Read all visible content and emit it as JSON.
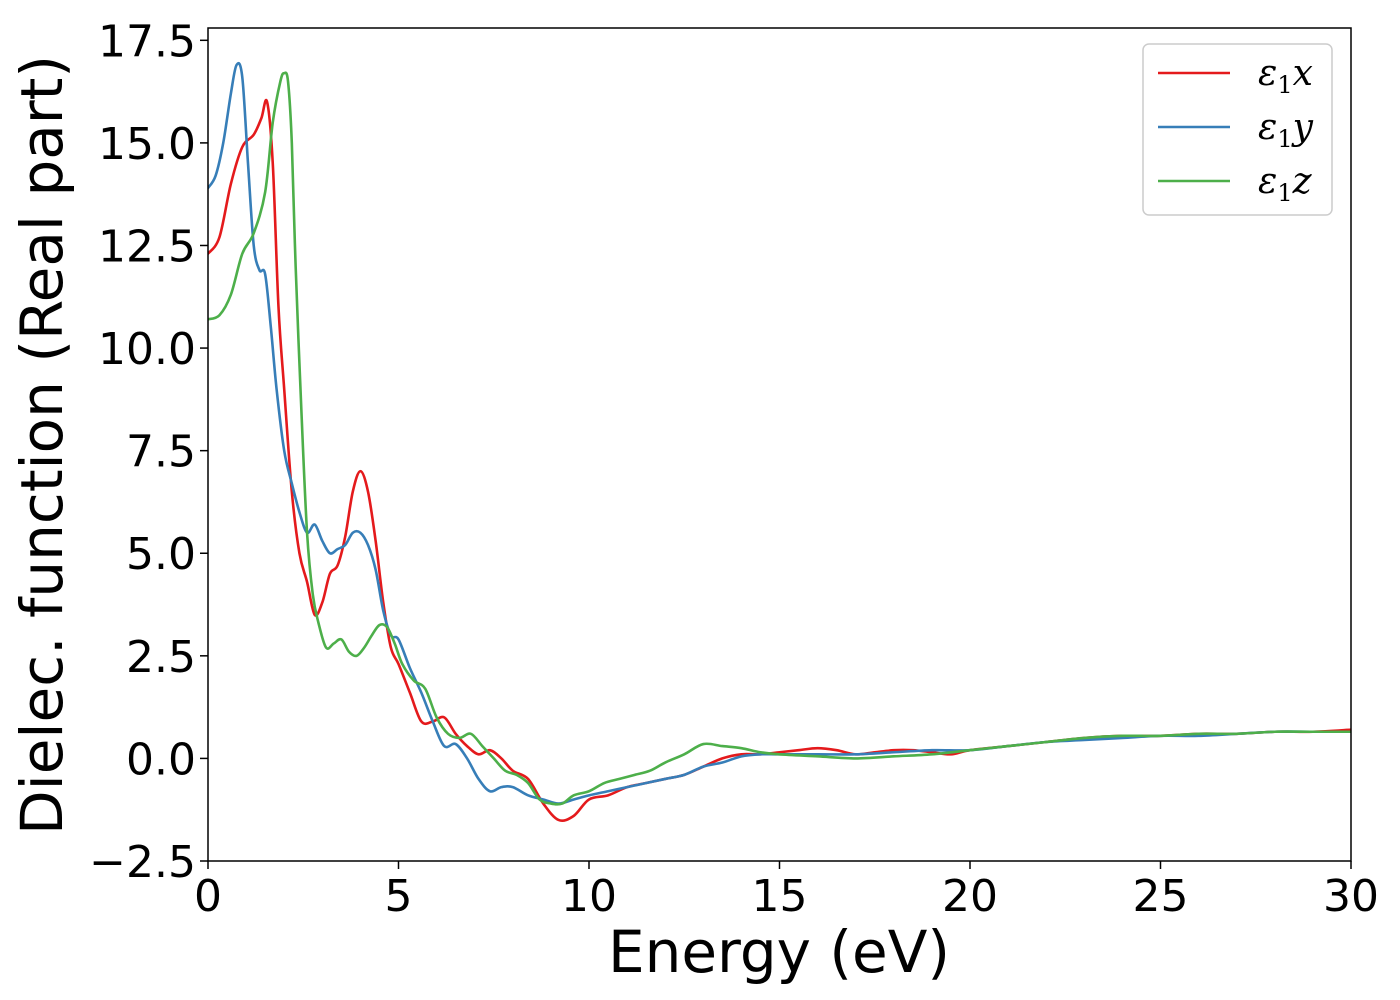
{
  "chart_data": {
    "type": "line",
    "title": "",
    "xlabel": "Energy (eV)",
    "ylabel": "Dielec. function (Real part)",
    "xlim": [
      0,
      30
    ],
    "ylim": [
      -2.5,
      17.8
    ],
    "xticks": [
      0,
      5,
      10,
      15,
      20,
      25,
      30
    ],
    "xtick_labels": [
      "0",
      "5",
      "10",
      "15",
      "20",
      "25",
      "30"
    ],
    "yticks": [
      -2.5,
      0.0,
      2.5,
      5.0,
      7.5,
      10.0,
      12.5,
      15.0,
      17.5
    ],
    "ytick_labels": [
      "−2.5",
      "0.0",
      "2.5",
      "5.0",
      "7.5",
      "10.0",
      "12.5",
      "15.0",
      "17.5"
    ],
    "grid": false,
    "legend_position": "top-right",
    "series": [
      {
        "name": "ε₁x",
        "legend_base": "ε",
        "legend_sub": "1",
        "legend_var": "x",
        "color": "#e41a1c",
        "x": [
          0,
          0.3,
          0.6,
          0.9,
          1.2,
          1.4,
          1.55,
          1.7,
          1.85,
          2.0,
          2.2,
          2.4,
          2.6,
          2.8,
          3.0,
          3.2,
          3.4,
          3.6,
          3.8,
          4.0,
          4.2,
          4.4,
          4.6,
          4.8,
          5.0,
          5.3,
          5.6,
          5.9,
          6.2,
          6.5,
          6.8,
          7.1,
          7.4,
          7.7,
          8.0,
          8.4,
          8.8,
          9.2,
          9.6,
          10.0,
          10.5,
          11.0,
          11.5,
          12.0,
          12.5,
          13.0,
          13.5,
          14.0,
          14.5,
          15.0,
          15.5,
          16.0,
          16.5,
          17.0,
          17.5,
          18.0,
          18.5,
          19.0,
          19.5,
          20.0,
          21.0,
          22.0,
          23.0,
          24.0,
          25.0,
          26.0,
          27.0,
          28.0,
          29.0,
          30.0
        ],
        "y": [
          12.3,
          12.7,
          14.0,
          14.9,
          15.2,
          15.6,
          16.0,
          14.5,
          11.0,
          9.0,
          6.5,
          5.0,
          4.3,
          3.5,
          3.8,
          4.5,
          4.7,
          5.4,
          6.5,
          7.0,
          6.5,
          5.3,
          3.8,
          2.7,
          2.3,
          1.6,
          0.9,
          0.9,
          1.0,
          0.6,
          0.3,
          0.1,
          0.2,
          0.0,
          -0.3,
          -0.5,
          -1.1,
          -1.5,
          -1.4,
          -1.0,
          -0.9,
          -0.7,
          -0.6,
          -0.5,
          -0.4,
          -0.2,
          0.0,
          0.1,
          0.1,
          0.15,
          0.2,
          0.25,
          0.2,
          0.1,
          0.15,
          0.2,
          0.2,
          0.15,
          0.1,
          0.2,
          0.3,
          0.4,
          0.5,
          0.55,
          0.55,
          0.6,
          0.6,
          0.65,
          0.65,
          0.7
        ]
      },
      {
        "name": "ε₁y",
        "legend_base": "ε",
        "legend_sub": "1",
        "legend_var": "y",
        "color": "#377eb8",
        "x": [
          0,
          0.2,
          0.4,
          0.6,
          0.75,
          0.9,
          1.05,
          1.2,
          1.35,
          1.5,
          1.65,
          1.8,
          2.0,
          2.2,
          2.4,
          2.6,
          2.8,
          3.0,
          3.2,
          3.4,
          3.6,
          3.8,
          4.0,
          4.2,
          4.4,
          4.6,
          4.8,
          5.0,
          5.3,
          5.6,
          5.9,
          6.2,
          6.5,
          6.8,
          7.1,
          7.4,
          7.7,
          8.0,
          8.4,
          8.8,
          9.2,
          9.6,
          10.0,
          10.5,
          11.0,
          11.5,
          12.0,
          12.5,
          13.0,
          13.5,
          14.0,
          14.5,
          15.0,
          16.0,
          17.0,
          18.0,
          19.0,
          20.0,
          21.0,
          22.0,
          23.0,
          24.0,
          25.0,
          26.0,
          27.0,
          28.0,
          29.0,
          30.0
        ],
        "y": [
          13.9,
          14.2,
          15.0,
          16.2,
          16.9,
          16.6,
          14.5,
          12.5,
          11.9,
          11.8,
          10.5,
          9.0,
          7.5,
          6.7,
          6.0,
          5.5,
          5.7,
          5.3,
          5.0,
          5.1,
          5.2,
          5.5,
          5.5,
          5.2,
          4.6,
          3.6,
          3.0,
          2.9,
          2.2,
          1.6,
          0.9,
          0.3,
          0.35,
          0.0,
          -0.5,
          -0.8,
          -0.7,
          -0.7,
          -0.9,
          -1.0,
          -1.1,
          -1.0,
          -0.9,
          -0.8,
          -0.7,
          -0.6,
          -0.5,
          -0.4,
          -0.2,
          -0.1,
          0.05,
          0.1,
          0.1,
          0.1,
          0.1,
          0.15,
          0.2,
          0.2,
          0.3,
          0.4,
          0.45,
          0.5,
          0.55,
          0.55,
          0.6,
          0.65,
          0.65,
          0.65
        ]
      },
      {
        "name": "ε₁z",
        "legend_base": "ε",
        "legend_sub": "1",
        "legend_var": "z",
        "color": "#4daf4a",
        "x": [
          0,
          0.3,
          0.6,
          0.9,
          1.2,
          1.5,
          1.7,
          1.9,
          2.0,
          2.1,
          2.2,
          2.3,
          2.45,
          2.6,
          2.75,
          2.9,
          3.1,
          3.3,
          3.5,
          3.7,
          3.9,
          4.1,
          4.3,
          4.5,
          4.7,
          4.9,
          5.1,
          5.4,
          5.7,
          6.0,
          6.3,
          6.6,
          6.9,
          7.2,
          7.5,
          7.8,
          8.1,
          8.4,
          8.7,
          9.0,
          9.3,
          9.6,
          10.0,
          10.4,
          10.8,
          11.2,
          11.6,
          12.0,
          12.5,
          13.0,
          13.5,
          14.0,
          14.5,
          15.0,
          16.0,
          17.0,
          18.0,
          19.0,
          20.0,
          21.0,
          22.0,
          23.0,
          24.0,
          25.0,
          26.0,
          27.0,
          28.0,
          29.0,
          30.0
        ],
        "y": [
          10.7,
          10.8,
          11.3,
          12.3,
          12.8,
          13.8,
          15.5,
          16.5,
          16.7,
          16.5,
          15.0,
          12.0,
          8.5,
          5.5,
          4.0,
          3.3,
          2.7,
          2.8,
          2.9,
          2.6,
          2.5,
          2.7,
          3.0,
          3.25,
          3.2,
          2.8,
          2.3,
          1.9,
          1.7,
          1.0,
          0.6,
          0.5,
          0.6,
          0.3,
          0.0,
          -0.3,
          -0.4,
          -0.6,
          -1.0,
          -1.1,
          -1.1,
          -0.9,
          -0.8,
          -0.6,
          -0.5,
          -0.4,
          -0.3,
          -0.1,
          0.1,
          0.35,
          0.3,
          0.25,
          0.15,
          0.1,
          0.05,
          0.0,
          0.05,
          0.1,
          0.2,
          0.3,
          0.4,
          0.5,
          0.55,
          0.55,
          0.6,
          0.6,
          0.65,
          0.65,
          0.65
        ]
      }
    ]
  }
}
